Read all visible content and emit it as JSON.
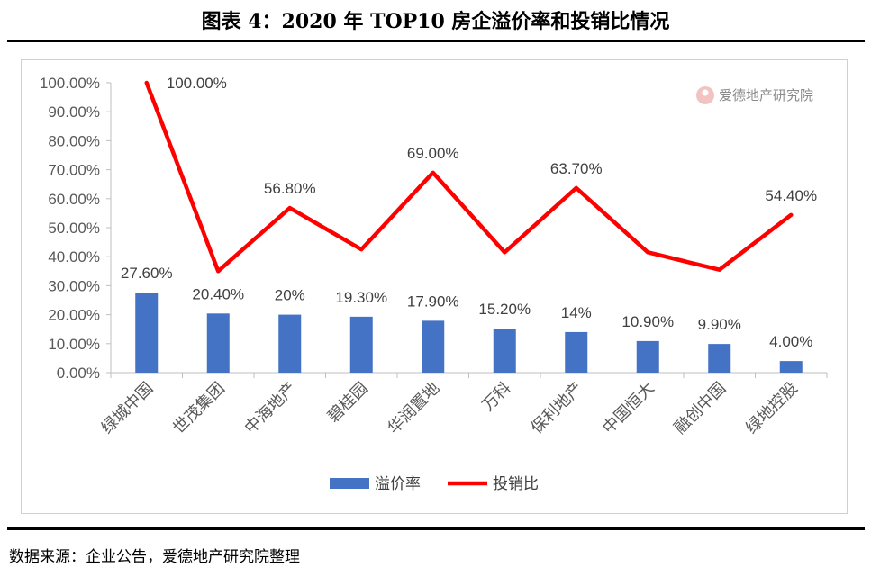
{
  "title": "图表 4：2020 年 TOP10 房企溢价率和投销比情况",
  "source": "数据来源：企业公告，爱德地产研究院整理",
  "watermark": {
    "text": "爱德地产研究院",
    "icon": "aide-logo-icon"
  },
  "chart_data": {
    "type": "bar+line",
    "categories": [
      "绿城中国",
      "世茂集团",
      "中海地产",
      "碧桂园",
      "华润置地",
      "万科",
      "保利地产",
      "中国恒大",
      "融创中国",
      "绿地控股"
    ],
    "series": [
      {
        "name": "溢价率",
        "type": "bar",
        "color": "#4472C4",
        "values": [
          27.6,
          20.4,
          20,
          19.3,
          17.9,
          15.2,
          14,
          10.9,
          9.9,
          4.0
        ],
        "labels": [
          "27.60%",
          "20.40%",
          "20%",
          "19.30%",
          "17.90%",
          "15.20%",
          "14%",
          "10.90%",
          "9.90%",
          "4.00%"
        ]
      },
      {
        "name": "投销比",
        "type": "line",
        "color": "#FF0000",
        "values": [
          100,
          35,
          56.8,
          42.5,
          69,
          41.5,
          63.7,
          41.5,
          35.5,
          54.4
        ],
        "labels": [
          "100.00%",
          "",
          "56.80%",
          "",
          "69.00%",
          "",
          "63.70%",
          "",
          "",
          "54.40%"
        ]
      }
    ],
    "y_ticks": [
      "0.00%",
      "10.00%",
      "20.00%",
      "30.00%",
      "40.00%",
      "50.00%",
      "60.00%",
      "70.00%",
      "80.00%",
      "90.00%",
      "100.00%"
    ],
    "ylim": [
      0,
      100
    ],
    "legend_position": "bottom",
    "grid": false
  }
}
